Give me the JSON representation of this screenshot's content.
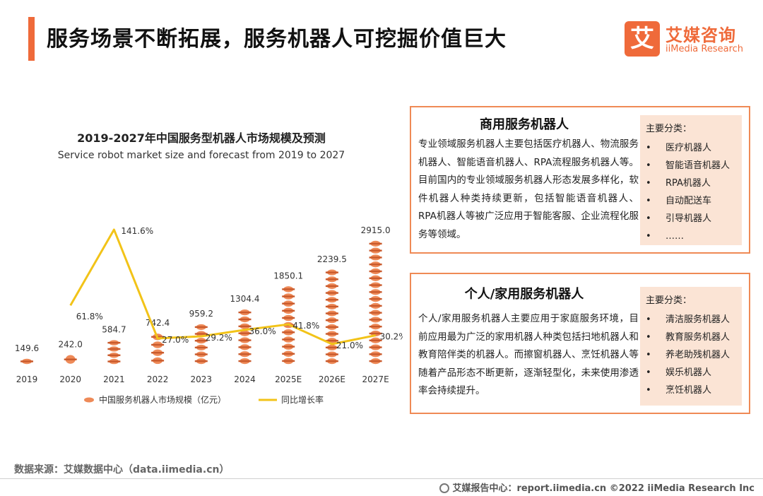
{
  "header": {
    "title": "服务场景不断拓展，服务机器人可挖掘价值巨大",
    "logo_mark": "艾",
    "logo_cn": "艾媒咨询",
    "logo_en": "iiMedia Research"
  },
  "colors": {
    "accent": "#ef6a3a",
    "bar": "#ee8a58",
    "line": "#f2c318",
    "card_border": "#ef8a55",
    "card_fill": "#fbe4d5"
  },
  "chart_data": {
    "type": "bar",
    "title": "2019-2027年中国服务型机器人市场规模及预测",
    "subtitle": "Service robot market size and forecast from 2019 to 2027",
    "categories": [
      "2019",
      "2020",
      "2021",
      "2022",
      "2023",
      "2024",
      "2025E",
      "2026E",
      "2027E"
    ],
    "series": [
      {
        "name": "中国服务机器人市场规模（亿元）",
        "type": "bar",
        "values": [
          149.6,
          242.0,
          584.7,
          742.4,
          959.2,
          1304.4,
          1850.1,
          2239.5,
          2915.0
        ],
        "labels": [
          "149.6",
          "242.0",
          "584.7",
          "742.4",
          "959.2",
          "1304.4",
          "1850.1",
          "2239.5",
          "2915.0"
        ]
      },
      {
        "name": "同比增长率",
        "type": "line",
        "values": [
          null,
          61.8,
          141.6,
          27.0,
          29.2,
          36.0,
          41.8,
          21.0,
          30.2
        ],
        "labels": [
          "",
          "61.8%",
          "141.6%",
          "27.0%",
          "29.2%",
          "36.0%",
          "41.8%",
          "21.0%",
          "30.2%"
        ]
      }
    ],
    "legend": "bottom"
  },
  "cards": [
    {
      "title": "商用服务机器人",
      "body": "专业领域服务机器人主要包括医疗机器人、物流服务机器人、智能语音机器人、RPA流程服务机器人等。目前国内的专业领域服务机器人形态发展多样化，软件机器人种类持续更新，包括智能语音机器人、 RPA机器人等被广泛应用于智能客服、企业流程化服务等领域。",
      "cat_title": "主要分类：",
      "items": [
        "医疗机器人",
        "智能语音机器人",
        "RPA机器人",
        "自动配送车",
        "引导机器人",
        "……"
      ]
    },
    {
      "title": "个人/家用服务机器人",
      "body": "个人/家用服务机器人主要应用于家庭服务环境，目前应用最为广泛的家用机器人种类包括扫地机器人和教育陪伴类的机器人。而擦窗机器人、烹饪机器人等随着产品形态不断更新，逐渐轻型化，未来使用渗透率会持续提升。",
      "cat_title": "主要分类：",
      "items": [
        "清洁服务机器人",
        "教育服务机器人",
        "养老助残机器人",
        "娱乐机器人",
        "烹饪机器人"
      ]
    }
  ],
  "source": "数据来源：艾媒数据中心（data.iimedia.cn）",
  "footer": "艾媒报告中心：report.iimedia.cn  ©2022  iiMedia Research  Inc",
  "bullet": "•"
}
